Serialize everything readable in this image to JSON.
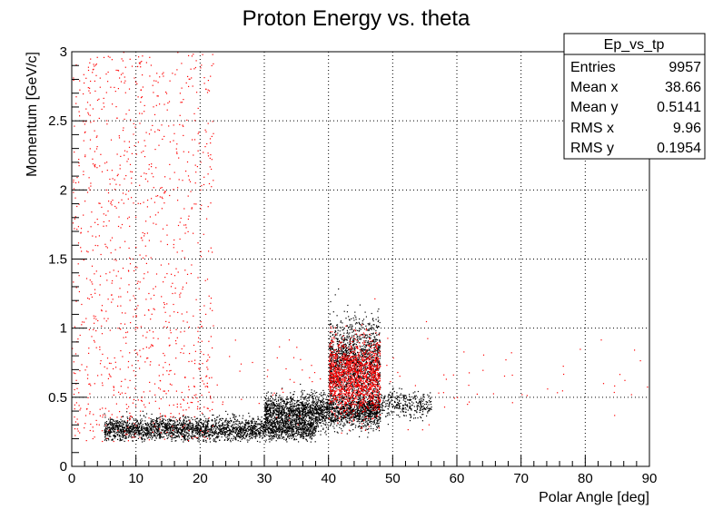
{
  "chart_data": {
    "type": "scatter",
    "title": "Proton Energy vs. theta",
    "xlabel": "Polar Angle [deg]",
    "ylabel": "Momentum [GeV/c]",
    "xlim": [
      0,
      90
    ],
    "ylim": [
      0,
      3
    ],
    "x_ticks": [
      "0",
      "10",
      "20",
      "30",
      "40",
      "50",
      "60",
      "70",
      "80",
      "90"
    ],
    "y_ticks": [
      "0",
      "0.5",
      "1",
      "1.5",
      "2",
      "2.5",
      "3"
    ],
    "grid": true,
    "series": [
      {
        "color": "#000000",
        "clusters": [
          {
            "x_range": [
              5,
              38
            ],
            "y_center": 0.27,
            "y_spread": 0.07,
            "count": 2800
          },
          {
            "x_range": [
              30,
              48
            ],
            "y_center": 0.4,
            "y_spread": 0.1,
            "count": 2200
          },
          {
            "x_range": [
              40,
              48
            ],
            "y_center": 0.75,
            "y_spread": 0.25,
            "count": 1600
          },
          {
            "x_range": [
              46,
              56
            ],
            "y_center": 0.45,
            "y_spread": 0.08,
            "count": 400
          }
        ]
      },
      {
        "color": "#ff0000",
        "clusters": [
          {
            "x_range": [
              40,
              48
            ],
            "y_center": 0.65,
            "y_spread": 0.22,
            "count": 1400
          },
          {
            "x_range": [
              0,
              22
            ],
            "y_center": 1.5,
            "y_spread": 1.5,
            "count": 1100
          },
          {
            "x_range": [
              0,
              90
            ],
            "y_center": 0.6,
            "y_spread": 0.3,
            "count": 150
          }
        ]
      }
    ],
    "stats_box": {
      "name": "Ep_vs_tp",
      "entries": [
        {
          "label": "Entries",
          "value": "9957"
        },
        {
          "label": "Mean x",
          "value": "38.66"
        },
        {
          "label": "Mean y",
          "value": "0.5141"
        },
        {
          "label": "RMS x",
          "value": "9.96"
        },
        {
          "label": "RMS y",
          "value": "0.1954"
        }
      ]
    }
  }
}
